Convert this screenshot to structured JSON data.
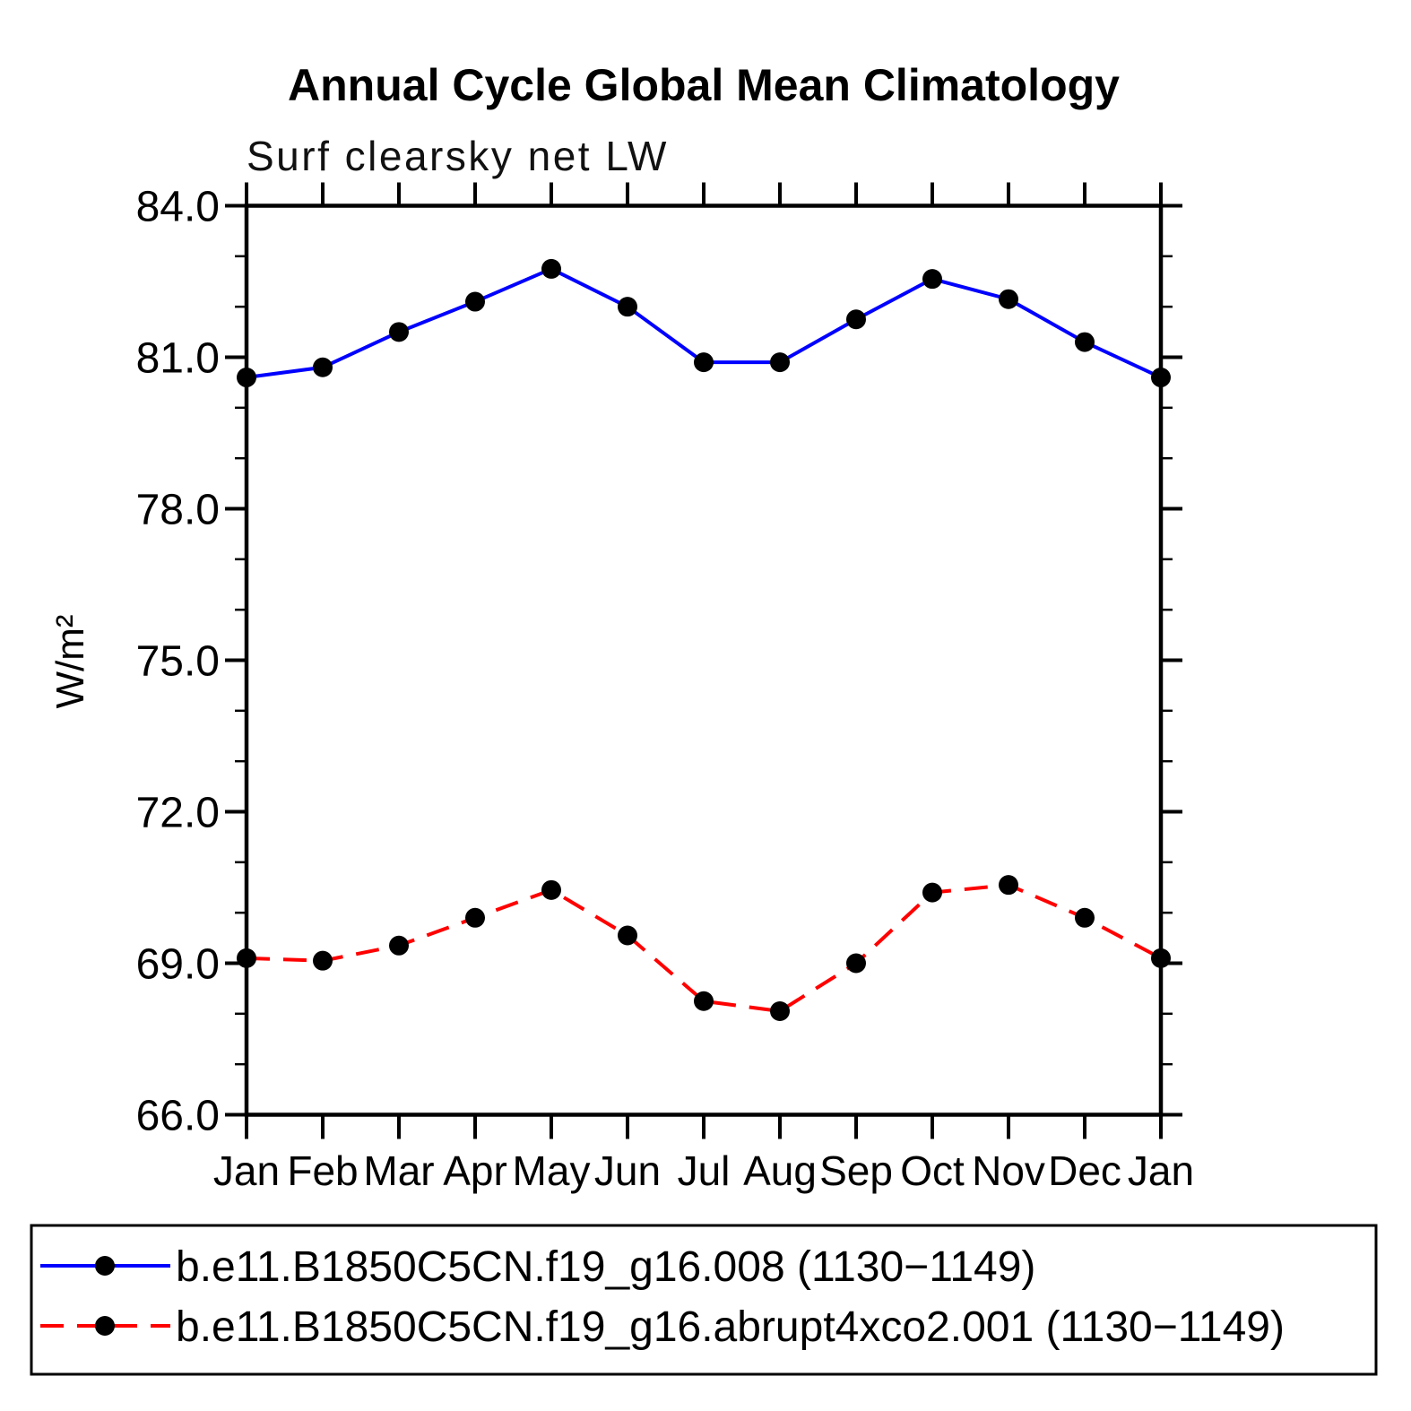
{
  "chart_data": {
    "type": "line",
    "title": "Annual Cycle Global Mean Climatology",
    "subtitle": "Surf clearsky net LW",
    "ylabel": "W/m²",
    "x_categories": [
      "Jan",
      "Feb",
      "Mar",
      "Apr",
      "May",
      "Jun",
      "Jul",
      "Aug",
      "Sep",
      "Oct",
      "Nov",
      "Dec",
      "Jan"
    ],
    "ylim": [
      66.0,
      84.0
    ],
    "ytick_step": 3.0,
    "ytick_minor_step": 1.0,
    "yticks": [
      "84.0",
      "81.0",
      "78.0",
      "75.0",
      "72.0",
      "69.0",
      "66.0"
    ],
    "grid": false,
    "legend_position": "bottom",
    "axis_color": "#000000",
    "marker_color": "#000000",
    "series": [
      {
        "name": "b.e11.B1850C5CN.f19_g16.008 (1130−1149)",
        "color": "#0000ff",
        "style": "solid",
        "marker": "filled-circle",
        "values": [
          80.6,
          80.8,
          81.5,
          82.1,
          82.75,
          82.0,
          80.9,
          80.9,
          81.75,
          82.55,
          82.15,
          81.3,
          80.6
        ]
      },
      {
        "name": "b.e11.B1850C5CN.f19_g16.abrupt4xco2.001 (1130−1149)",
        "color": "#ff0000",
        "style": "dashed",
        "marker": "filled-circle",
        "values": [
          69.1,
          69.05,
          69.35,
          69.9,
          70.45,
          69.55,
          68.25,
          68.05,
          69.0,
          70.4,
          70.55,
          69.9,
          69.1
        ]
      }
    ]
  }
}
